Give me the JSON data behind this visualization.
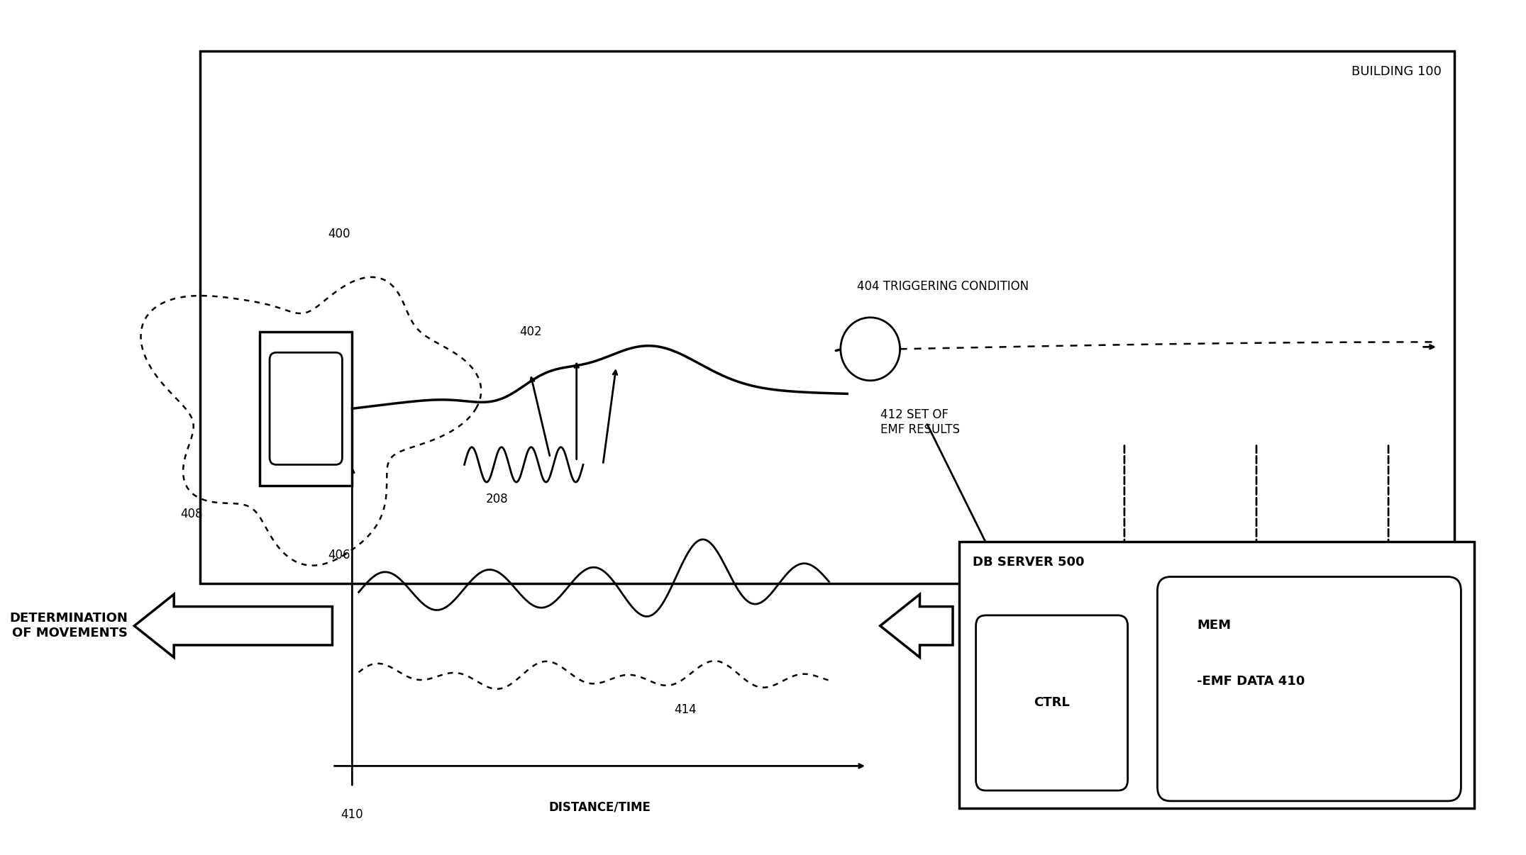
{
  "bg_color": "#ffffff",
  "building_label": "BUILDING 100",
  "db_server_label": "DB SERVER 500",
  "ctrl_label": "CTRL",
  "mem_label_1": "MEM",
  "mem_label_2": "-EMF DATA 410",
  "label_400": "400",
  "label_402": "402",
  "label_404": "404 TRIGGERING CONDITION",
  "label_406": "406",
  "label_408": "408",
  "label_208": "208",
  "label_412": "412 SET OF\nEMF RESULTS",
  "label_410": "410",
  "label_414": "414",
  "label_distance_time": "DISTANCE/TIME",
  "label_determination": "DETERMINATION\nOF MOVEMENTS"
}
